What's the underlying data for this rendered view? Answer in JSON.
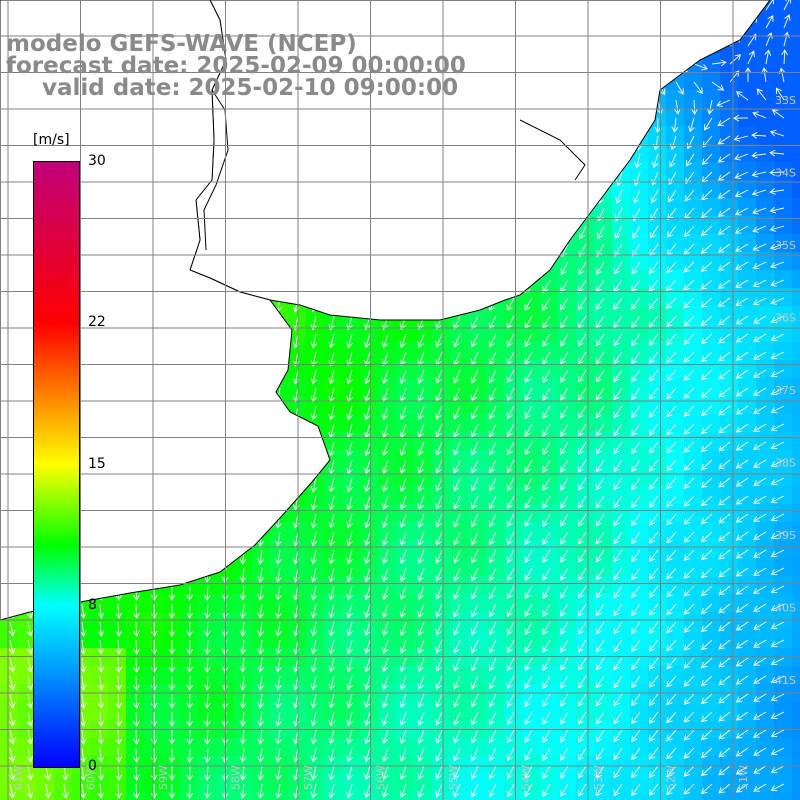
{
  "header": {
    "title_model": "modelo GEFS-WAVE (NCEP)",
    "forecast_line": "forecast date: 2025-02-09 00:00:00",
    "valid_line": "valid date: 2025-02-10 09:00:00"
  },
  "colorbar": {
    "units": "[m/s]",
    "ticks": [
      "30",
      "22",
      "15",
      "8",
      "0"
    ],
    "tick_values": [
      30,
      22,
      15,
      8,
      0
    ],
    "min": 0,
    "max": 30,
    "stops": [
      {
        "value": 0,
        "color": "#0000ff"
      },
      {
        "value": 5,
        "color": "#00a0ff"
      },
      {
        "value": 8,
        "color": "#00ffff"
      },
      {
        "value": 11,
        "color": "#00ff00"
      },
      {
        "value": 15,
        "color": "#ffff00"
      },
      {
        "value": 22,
        "color": "#ff0000"
      },
      {
        "value": 30,
        "color": "#c0007a"
      }
    ]
  },
  "graticule": {
    "lon_labels": [
      "61W",
      "60W",
      "59W",
      "58W",
      "57W",
      "56W",
      "55W",
      "54W",
      "53W",
      "52W",
      "51W"
    ],
    "lat_labels": [
      "33S",
      "34S",
      "35S",
      "36S",
      "37S",
      "38S",
      "39S",
      "40S",
      "41S"
    ]
  },
  "map": {
    "land_color": "#ffffff",
    "coast_color": "#000000",
    "grid_color": "#808080",
    "arrow_color": "#ffffff"
  }
}
